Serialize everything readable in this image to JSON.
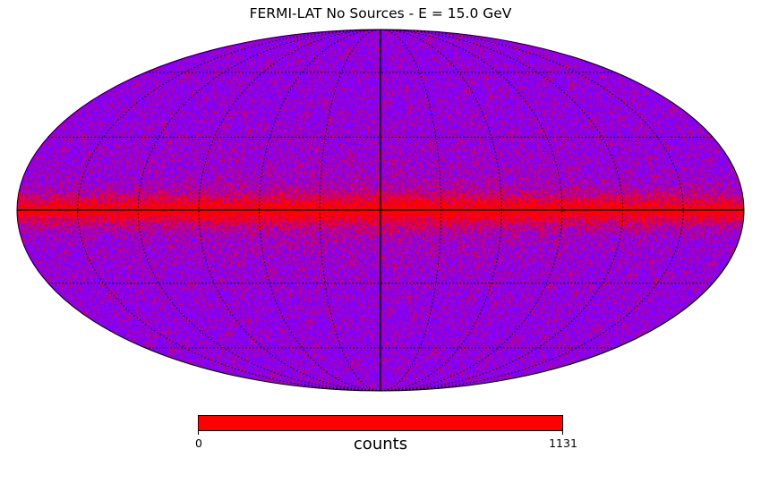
{
  "chart_data": {
    "type": "heatmap",
    "projection": "mollweide",
    "title": "FERMI-LAT No Sources - E = 15.0 GeV",
    "colorbar": {
      "label": "counts",
      "min": 0,
      "max": 1131,
      "tick_labels": [
        "0",
        "1131"
      ],
      "orientation": "horizontal",
      "color_low": "#7f00ff",
      "color_high": "#ff0000"
    },
    "graticule": {
      "longitude_step_deg": 30,
      "latitude_step_deg": 30,
      "style": "dotted"
    },
    "colors": {
      "background_sky": "#7f00ff",
      "emission": "#ff0000",
      "axes": "#000000"
    }
  }
}
